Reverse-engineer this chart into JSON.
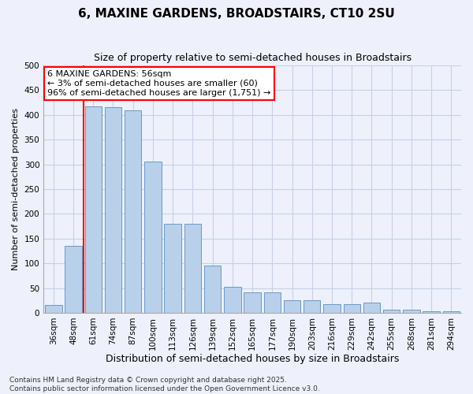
{
  "title": "6, MAXINE GARDENS, BROADSTAIRS, CT10 2SU",
  "subtitle": "Size of property relative to semi-detached houses in Broadstairs",
  "xlabel": "Distribution of semi-detached houses by size in Broadstairs",
  "ylabel": "Number of semi-detached properties",
  "categories": [
    "36sqm",
    "48sqm",
    "61sqm",
    "74sqm",
    "87sqm",
    "100sqm",
    "113sqm",
    "126sqm",
    "139sqm",
    "152sqm",
    "165sqm",
    "177sqm",
    "190sqm",
    "203sqm",
    "216sqm",
    "229sqm",
    "242sqm",
    "255sqm",
    "268sqm",
    "281sqm",
    "294sqm"
  ],
  "values": [
    16,
    135,
    418,
    415,
    410,
    305,
    180,
    180,
    96,
    53,
    42,
    42,
    25,
    25,
    17,
    17,
    20,
    6,
    6,
    3,
    3
  ],
  "bar_color": "#b8d0ea",
  "bar_edge_color": "#6699cc",
  "vline_color": "red",
  "vline_x": 1.5,
  "annotation_text": "6 MAXINE GARDENS: 56sqm\n← 3% of semi-detached houses are smaller (60)\n96% of semi-detached houses are larger (1,751) →",
  "annotation_box_color": "white",
  "annotation_box_edge_color": "red",
  "ylim": [
    0,
    500
  ],
  "yticks": [
    0,
    50,
    100,
    150,
    200,
    250,
    300,
    350,
    400,
    450,
    500
  ],
  "footer": "Contains HM Land Registry data © Crown copyright and database right 2025.\nContains public sector information licensed under the Open Government Licence v3.0.",
  "background_color": "#eef1fb",
  "grid_color": "#c8cfe8",
  "title_fontsize": 11,
  "subtitle_fontsize": 9,
  "xlabel_fontsize": 9,
  "ylabel_fontsize": 8,
  "tick_fontsize": 7.5,
  "footer_fontsize": 6.5,
  "ann_fontsize": 8
}
